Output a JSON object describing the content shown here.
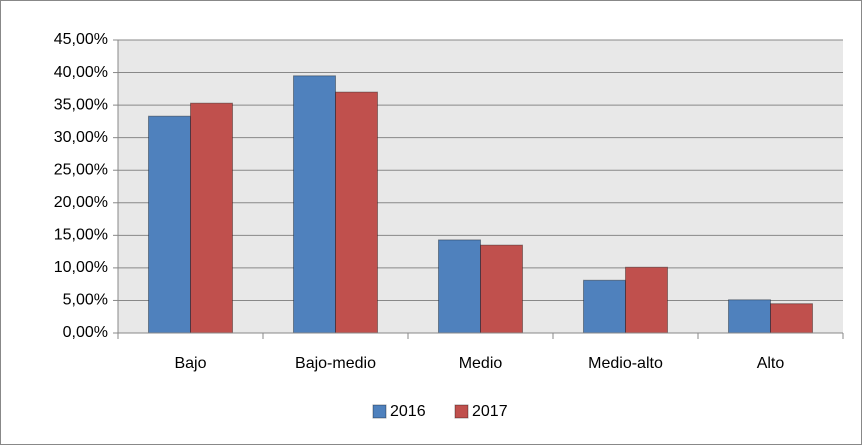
{
  "chart_data": {
    "type": "bar",
    "categories": [
      "Bajo",
      "Bajo-medio",
      "Medio",
      "Medio-alto",
      "Alto"
    ],
    "series": [
      {
        "name": "2016",
        "color": "#4f81bd",
        "values": [
          33.3,
          39.5,
          14.3,
          8.1,
          5.1
        ]
      },
      {
        "name": "2017",
        "color": "#c0504d",
        "values": [
          35.3,
          37.0,
          13.5,
          10.1,
          4.5
        ]
      }
    ],
    "ylim": [
      0,
      45
    ],
    "yticks": [
      {
        "value": 0,
        "label": "0,00%"
      },
      {
        "value": 5,
        "label": "5,00%"
      },
      {
        "value": 10,
        "label": "10,00%"
      },
      {
        "value": 15,
        "label": "15,00%"
      },
      {
        "value": 20,
        "label": "20,00%"
      },
      {
        "value": 25,
        "label": "25,00%"
      },
      {
        "value": 30,
        "label": "30,00%"
      },
      {
        "value": 35,
        "label": "35,00%"
      },
      {
        "value": 40,
        "label": "40,00%"
      },
      {
        "value": 45,
        "label": "45,00%"
      }
    ],
    "grid": true,
    "legend": "bottom"
  }
}
